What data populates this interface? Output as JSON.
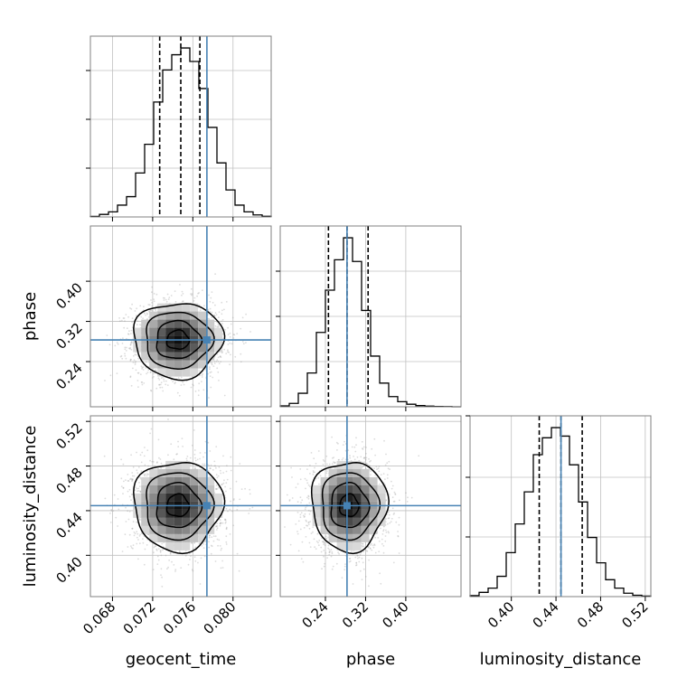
{
  "figure": {
    "type": "corner-plot"
  },
  "colors": {
    "hist": "#000000",
    "quantile": "#000000",
    "truth": "#4682b4",
    "grid": "#c0c0c0",
    "frame": "#808080",
    "scatter": "#9a9a9a",
    "contour": "#000000"
  },
  "labels": {
    "geocent_time": "geocent_time",
    "phase": "phase",
    "luminosity_distance": "luminosity_distance"
  },
  "chart_data": {
    "type": "corner",
    "grid": true,
    "parameters": [
      {
        "key": "geocent_time",
        "label": "geocent_time",
        "range": [
          0.0658,
          0.0838
        ],
        "ticks": [
          0.068,
          0.072,
          0.076,
          0.08
        ],
        "tick_labels": [
          "0.068",
          "0.072",
          "0.076",
          "0.080"
        ],
        "truth": 0.0774,
        "quantiles": [
          0.0727,
          0.0748,
          0.0767
        ],
        "histogram": {
          "bin_edges": [
            0.0658,
            0.0667,
            0.0676,
            0.0685,
            0.0694,
            0.0703,
            0.0712,
            0.0721,
            0.073,
            0.0739,
            0.0748,
            0.0757,
            0.0766,
            0.0775,
            0.0784,
            0.0793,
            0.0802,
            0.0811,
            0.082,
            0.0829,
            0.0838
          ],
          "counts": [
            0.003,
            0.015,
            0.03,
            0.07,
            0.12,
            0.26,
            0.43,
            0.68,
            0.87,
            0.96,
            1.0,
            0.92,
            0.76,
            0.53,
            0.32,
            0.16,
            0.07,
            0.03,
            0.012,
            0.004
          ]
        },
        "hist_ticks": [
          0.27,
          0.54,
          0.81
        ]
      },
      {
        "key": "phase",
        "label": "phase",
        "range": [
          0.15,
          0.51
        ],
        "ticks": [
          0.24,
          0.32,
          0.4
        ],
        "tick_labels": [
          "0.24",
          "0.32",
          "0.40"
        ],
        "truth": 0.283,
        "quantiles": [
          0.246,
          0.283,
          0.325
        ],
        "histogram": {
          "bin_edges": [
            0.15,
            0.168,
            0.186,
            0.204,
            0.222,
            0.24,
            0.258,
            0.276,
            0.294,
            0.312,
            0.33,
            0.348,
            0.366,
            0.384,
            0.402,
            0.42,
            0.438,
            0.456,
            0.474,
            0.492,
            0.51
          ],
          "counts": [
            0.005,
            0.02,
            0.08,
            0.2,
            0.44,
            0.69,
            0.87,
            1.0,
            0.86,
            0.57,
            0.3,
            0.14,
            0.06,
            0.03,
            0.015,
            0.007,
            0.004,
            0.002,
            0.001,
            0.0
          ]
        },
        "hist_ticks": [
          0.25,
          0.5,
          0.75
        ]
      },
      {
        "key": "luminosity_distance",
        "label": "luminosity_distance",
        "range": [
          0.363,
          0.525
        ],
        "ticks": [
          0.4,
          0.44,
          0.48,
          0.52
        ],
        "tick_labels": [
          "0.40",
          "0.44",
          "0.48",
          "0.52"
        ],
        "truth": 0.4445,
        "quantiles": [
          0.425,
          0.4445,
          0.4635
        ],
        "histogram": {
          "bin_edges": [
            0.363,
            0.3711,
            0.3792,
            0.3873,
            0.3954,
            0.4035,
            0.4116,
            0.4197,
            0.4278,
            0.4359,
            0.444,
            0.4521,
            0.4602,
            0.4683,
            0.4764,
            0.4845,
            0.4926,
            0.5007,
            0.5088,
            0.5169,
            0.525
          ],
          "counts": [
            0.006,
            0.025,
            0.05,
            0.12,
            0.26,
            0.43,
            0.62,
            0.84,
            0.94,
            1.0,
            0.95,
            0.78,
            0.56,
            0.35,
            0.2,
            0.1,
            0.05,
            0.02,
            0.008,
            0.003
          ]
        },
        "hist_ticks": [
          0.33,
          0.66,
          1.0
        ]
      }
    ],
    "pairs": [
      {
        "x": "geocent_time",
        "y": "phase",
        "center": [
          0.0745,
          0.283
        ],
        "spread": [
          0.00215,
          0.0365
        ]
      },
      {
        "x": "geocent_time",
        "y": "luminosity_distance",
        "center": [
          0.0745,
          0.4445
        ],
        "spread": [
          0.00215,
          0.0195
        ]
      },
      {
        "x": "phase",
        "y": "luminosity_distance",
        "center": [
          0.287,
          0.4445
        ],
        "spread": [
          0.0365,
          0.0195
        ]
      }
    ],
    "contour_levels_sigma": [
      0.5,
      1.0,
      1.5,
      2.0
    ]
  }
}
